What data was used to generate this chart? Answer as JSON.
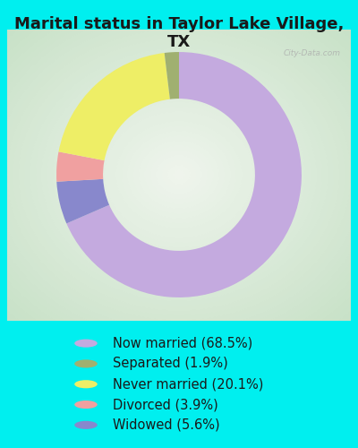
{
  "title": "Marital status in Taylor Lake Village,\nTX",
  "background_color": "#00EFEF",
  "chart_bg_gradient_center": "#f0f5ee",
  "chart_bg_gradient_edge": "#b8d8b8",
  "segments_ordered": [
    {
      "label": "Now married (68.5%)",
      "value": 68.5,
      "color": "#C4AADF"
    },
    {
      "label": "Separated (1.9%)",
      "value": 1.9,
      "color": "#A0B070"
    },
    {
      "label": "Never married (20.1%)",
      "value": 20.1,
      "color": "#EEEE66"
    },
    {
      "label": "Divorced (3.9%)",
      "value": 3.9,
      "color": "#F0A0A0"
    },
    {
      "label": "Widowed (5.6%)",
      "value": 5.6,
      "color": "#8888CC"
    }
  ],
  "legend_order": [
    {
      "label": "Now married (68.5%)",
      "color": "#C4AADF"
    },
    {
      "label": "Separated (1.9%)",
      "color": "#A0B070"
    },
    {
      "label": "Never married (20.1%)",
      "color": "#EEEE66"
    },
    {
      "label": "Divorced (3.9%)",
      "color": "#F0A0A0"
    },
    {
      "label": "Widowed (5.6%)",
      "color": "#8888CC"
    }
  ],
  "donut_width": 0.38,
  "start_angle": 90,
  "title_fontsize": 13,
  "legend_fontsize": 10.5,
  "watermark": "City-Data.com"
}
